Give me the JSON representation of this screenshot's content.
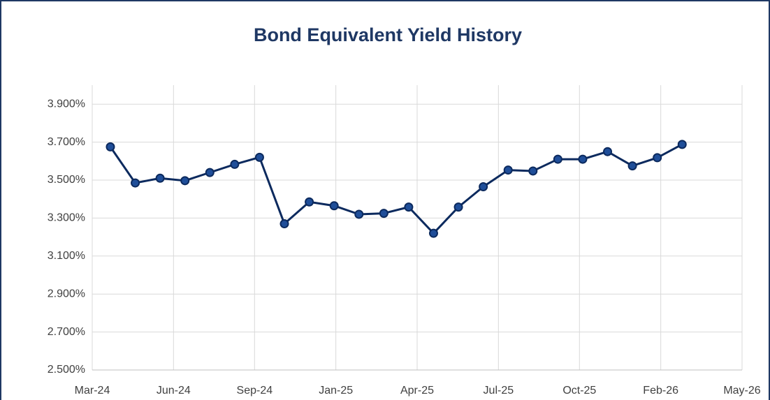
{
  "chart_data": {
    "type": "line",
    "title": "Bond Equivalent Yield History",
    "x": [
      0,
      1,
      2,
      3,
      4,
      5,
      6,
      7,
      8,
      9,
      10,
      11,
      12,
      13,
      14,
      15,
      16,
      17,
      18,
      19,
      20,
      21,
      22,
      23
    ],
    "series": [
      {
        "name": "Bond Equivalent Yield",
        "color": "#0c2a5e",
        "values": [
          3.675,
          3.485,
          3.51,
          3.497,
          3.54,
          3.583,
          3.62,
          3.27,
          3.385,
          3.365,
          3.32,
          3.325,
          3.358,
          3.22,
          3.358,
          3.465,
          3.553,
          3.548,
          3.61,
          3.61,
          3.65,
          3.575,
          3.618,
          3.688
        ]
      }
    ],
    "xlim": [
      -0.73,
      25.41
    ],
    "xticks": [
      {
        "value": -0.73,
        "label": "Mar-24"
      },
      {
        "value": 2.54,
        "label": "Jun-24"
      },
      {
        "value": 5.8,
        "label": "Sep-24"
      },
      {
        "value": 9.07,
        "label": "Jan-25"
      },
      {
        "value": 12.34,
        "label": "Apr-25"
      },
      {
        "value": 15.61,
        "label": "Jul-25"
      },
      {
        "value": 18.87,
        "label": "Oct-25"
      },
      {
        "value": 22.14,
        "label": "Feb-26"
      },
      {
        "value": 25.41,
        "label": "May-26"
      }
    ],
    "ylim": [
      2.5,
      4.0
    ],
    "yticks": [
      {
        "value": 2.5,
        "label": "2.500%"
      },
      {
        "value": 2.7,
        "label": "2.700%"
      },
      {
        "value": 2.9,
        "label": "2.900%"
      },
      {
        "value": 3.1,
        "label": "3.100%"
      },
      {
        "value": 3.3,
        "label": "3.300%"
      },
      {
        "value": 3.5,
        "label": "3.500%"
      },
      {
        "value": 3.7,
        "label": "3.700%"
      },
      {
        "value": 3.9,
        "label": "3.900%"
      }
    ],
    "grid": true
  }
}
